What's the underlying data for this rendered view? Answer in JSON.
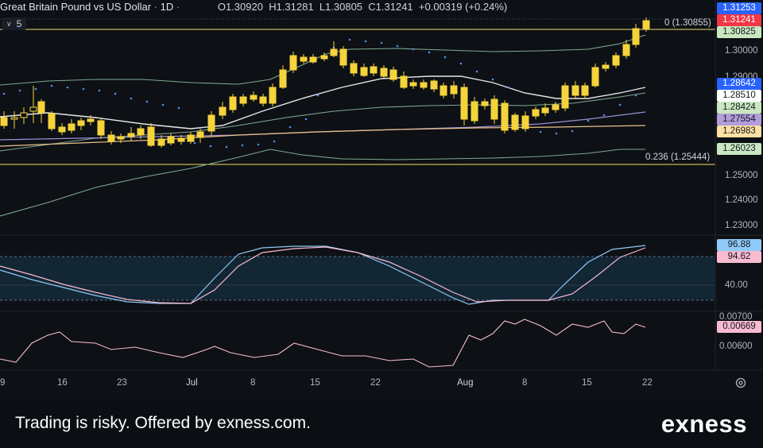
{
  "legend": {
    "symbol": "Great Britain Pound vs US Dollar",
    "dot": "·",
    "interval": "1D",
    "dot2": "·",
    "open": "O1.30920",
    "high": "H1.31281",
    "low": "L1.30805",
    "close": "C1.31241",
    "change": "+0.00319 (+0.24%)"
  },
  "indicator_toggle": {
    "count": "5",
    "icon": "chevron-down-icon"
  },
  "price_axis": {
    "labels": [
      "1.30000",
      "1.29000",
      "1.25000",
      "1.24000",
      "1.23000"
    ],
    "tags": [
      {
        "text": "1.31253",
        "bg": "#2962ff",
        "fg": "#ffffff"
      },
      {
        "text": "1.31241",
        "bg": "#f23645",
        "fg": "#ffffff"
      },
      {
        "text": "1.30825",
        "bg": "#c9e8c0",
        "fg": "#131722"
      },
      {
        "text": "1.28642",
        "bg": "#2962ff",
        "fg": "#ffffff"
      },
      {
        "text": "1.28510",
        "bg": "#ffffff",
        "fg": "#131722"
      },
      {
        "text": "1.28424",
        "bg": "#c9e8c0",
        "fg": "#131722"
      },
      {
        "text": "1.27554",
        "bg": "#b39ddb",
        "fg": "#131722"
      },
      {
        "text": "1.26983",
        "bg": "#ffe0a3",
        "fg": "#131722"
      },
      {
        "text": "1.26023",
        "bg": "#c9e8c0",
        "fg": "#131722"
      }
    ]
  },
  "fib": {
    "top_label": "0 (1.30855)",
    "bottom_label": "0.236 (1.25444)",
    "color": "#f0e068"
  },
  "stoch_axis": {
    "label": "40.00",
    "tags": [
      {
        "text": "96.88",
        "bg": "#90caf9",
        "fg": "#131722"
      },
      {
        "text": "94.62",
        "bg": "#f8bbd0",
        "fg": "#131722"
      }
    ]
  },
  "atr_axis": {
    "labels": [
      "0.00700",
      "0.00600"
    ],
    "tag": {
      "text": "0.00669",
      "bg": "#f8bbd0",
      "fg": "#131722"
    }
  },
  "time_axis": [
    "9",
    "16",
    "23",
    "Jul",
    "8",
    "15",
    "22",
    "Aug",
    "8",
    "15",
    "22"
  ],
  "settings_icon": "gear-icon",
  "footer": {
    "disclaimer": "Trading is risky. Offered by exness.com.",
    "logo": "exness"
  },
  "colors": {
    "candle_up": "#f5d33a",
    "candle_down": "#f5d33a",
    "bb": "#e6e6e6",
    "ma_green": "#7fa88f",
    "ma_purple": "#9c8fd6",
    "ma_orange": "#e9c48a",
    "psar": "#4f8fe6",
    "stoch_k": "#90caf9",
    "stoch_d": "#f8bbd0",
    "atr": "#f8bbd0"
  }
}
